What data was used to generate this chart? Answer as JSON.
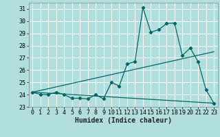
{
  "xlabel": "Humidex (Indice chaleur)",
  "background_color": "#b2dede",
  "grid_color": "#ffffff",
  "line_color": "#006666",
  "xlim": [
    -0.5,
    23.5
  ],
  "ylim": [
    23.0,
    31.5
  ],
  "xticks": [
    0,
    1,
    2,
    3,
    4,
    5,
    6,
    7,
    8,
    9,
    10,
    11,
    12,
    13,
    14,
    15,
    16,
    17,
    18,
    19,
    20,
    21,
    22,
    23
  ],
  "yticks": [
    23,
    24,
    25,
    26,
    27,
    28,
    29,
    30,
    31
  ],
  "line1_x": [
    0,
    1,
    2,
    3,
    4,
    5,
    6,
    7,
    8,
    9,
    10,
    11,
    12,
    13,
    14,
    15,
    16,
    17,
    18,
    19,
    20,
    21,
    22,
    23
  ],
  "line1_y": [
    24.2,
    24.0,
    24.0,
    24.2,
    24.0,
    23.7,
    23.7,
    23.65,
    24.0,
    23.65,
    25.0,
    24.7,
    26.5,
    26.7,
    31.1,
    29.1,
    29.3,
    29.8,
    29.85,
    27.2,
    27.8,
    26.7,
    24.4,
    23.3
  ],
  "line2_x": [
    0,
    23
  ],
  "line2_y": [
    24.2,
    27.5
  ],
  "line3_x": [
    0,
    23
  ],
  "line3_y": [
    24.2,
    23.3
  ],
  "xlabel_fontsize": 7,
  "tick_fontsize": 6
}
